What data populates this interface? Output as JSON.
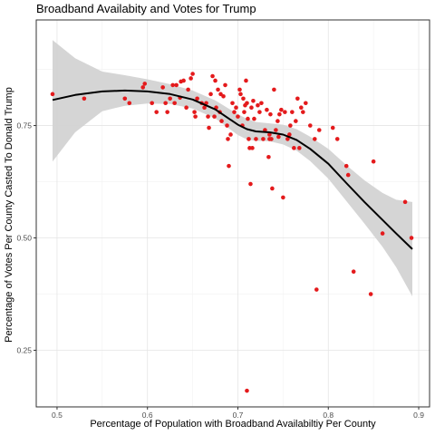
{
  "chart_data": {
    "type": "scatter",
    "title": "Broadband Availabity and Votes for Trump",
    "xlabel": "Percentage of Population with Broadband Availabiltiy Per County",
    "ylabel": "Percentage of Votes Per County Casted To Donald Trump",
    "xlim": [
      0.477,
      0.912
    ],
    "ylim": [
      0.124,
      0.985
    ],
    "x_ticks": [
      0.5,
      0.6,
      0.7,
      0.8,
      0.9
    ],
    "x_tick_labels": [
      "0.5",
      "0.6",
      "0.7",
      "0.8",
      "0.9"
    ],
    "y_ticks": [
      0.25,
      0.5,
      0.75
    ],
    "y_tick_labels": [
      "0.25",
      "0.50",
      "0.75"
    ],
    "grid": true,
    "point_color": "#e41a1c",
    "smooth_color": "#000000",
    "band_color": "#d3d3d3",
    "points": [
      [
        0.495,
        0.82
      ],
      [
        0.53,
        0.81
      ],
      [
        0.575,
        0.81
      ],
      [
        0.58,
        0.8
      ],
      [
        0.595,
        0.835
      ],
      [
        0.597,
        0.843
      ],
      [
        0.605,
        0.8
      ],
      [
        0.61,
        0.78
      ],
      [
        0.617,
        0.835
      ],
      [
        0.62,
        0.8
      ],
      [
        0.622,
        0.78
      ],
      [
        0.625,
        0.81
      ],
      [
        0.628,
        0.84
      ],
      [
        0.63,
        0.8
      ],
      [
        0.632,
        0.84
      ],
      [
        0.636,
        0.812
      ],
      [
        0.637,
        0.848
      ],
      [
        0.64,
        0.85
      ],
      [
        0.643,
        0.79
      ],
      [
        0.645,
        0.83
      ],
      [
        0.648,
        0.855
      ],
      [
        0.65,
        0.865
      ],
      [
        0.652,
        0.78
      ],
      [
        0.653,
        0.77
      ],
      [
        0.655,
        0.81
      ],
      [
        0.66,
        0.8
      ],
      [
        0.663,
        0.79
      ],
      [
        0.665,
        0.8
      ],
      [
        0.667,
        0.77
      ],
      [
        0.668,
        0.745
      ],
      [
        0.67,
        0.82
      ],
      [
        0.672,
        0.86
      ],
      [
        0.674,
        0.77
      ],
      [
        0.675,
        0.85
      ],
      [
        0.676,
        0.79
      ],
      [
        0.678,
        0.83
      ],
      [
        0.68,
        0.78
      ],
      [
        0.681,
        0.82
      ],
      [
        0.682,
        0.76
      ],
      [
        0.684,
        0.815
      ],
      [
        0.686,
        0.84
      ],
      [
        0.688,
        0.75
      ],
      [
        0.689,
        0.72
      ],
      [
        0.69,
        0.66
      ],
      [
        0.692,
        0.73
      ],
      [
        0.694,
        0.8
      ],
      [
        0.696,
        0.78
      ],
      [
        0.698,
        0.79
      ],
      [
        0.7,
        0.77
      ],
      [
        0.702,
        0.83
      ],
      [
        0.703,
        0.82
      ],
      [
        0.705,
        0.75
      ],
      [
        0.706,
        0.81
      ],
      [
        0.707,
        0.78
      ],
      [
        0.708,
        0.795
      ],
      [
        0.709,
        0.85
      ],
      [
        0.71,
        0.8
      ],
      [
        0.711,
        0.765
      ],
      [
        0.712,
        0.72
      ],
      [
        0.713,
        0.7
      ],
      [
        0.714,
        0.62
      ],
      [
        0.715,
        0.79
      ],
      [
        0.716,
        0.7
      ],
      [
        0.717,
        0.805
      ],
      [
        0.718,
        0.765
      ],
      [
        0.72,
        0.72
      ],
      [
        0.722,
        0.795
      ],
      [
        0.724,
        0.78
      ],
      [
        0.726,
        0.8
      ],
      [
        0.728,
        0.72
      ],
      [
        0.73,
        0.74
      ],
      [
        0.732,
        0.785
      ],
      [
        0.734,
        0.68
      ],
      [
        0.735,
        0.73
      ],
      [
        0.736,
        0.775
      ],
      [
        0.737,
        0.72
      ],
      [
        0.738,
        0.61
      ],
      [
        0.74,
        0.83
      ],
      [
        0.742,
        0.74
      ],
      [
        0.744,
        0.76
      ],
      [
        0.746,
        0.775
      ],
      [
        0.748,
        0.785
      ],
      [
        0.75,
        0.59
      ],
      [
        0.752,
        0.78
      ],
      [
        0.755,
        0.72
      ],
      [
        0.757,
        0.73
      ],
      [
        0.758,
        0.75
      ],
      [
        0.76,
        0.78
      ],
      [
        0.762,
        0.7
      ],
      [
        0.764,
        0.76
      ],
      [
        0.766,
        0.81
      ],
      [
        0.768,
        0.7
      ],
      [
        0.77,
        0.79
      ],
      [
        0.772,
        0.78
      ],
      [
        0.775,
        0.8
      ],
      [
        0.78,
        0.75
      ],
      [
        0.785,
        0.72
      ],
      [
        0.79,
        0.74
      ],
      [
        0.805,
        0.745
      ],
      [
        0.81,
        0.72
      ],
      [
        0.82,
        0.66
      ],
      [
        0.822,
        0.64
      ],
      [
        0.85,
        0.67
      ],
      [
        0.86,
        0.51
      ],
      [
        0.885,
        0.58
      ],
      [
        0.892,
        0.5
      ],
      [
        0.828,
        0.425
      ],
      [
        0.847,
        0.375
      ],
      [
        0.787,
        0.385
      ],
      [
        0.71,
        0.16
      ],
      [
        0.735,
        0.72
      ],
      [
        0.745,
        0.725
      ]
    ],
    "smooth": [
      [
        0.495,
        0.807
      ],
      [
        0.52,
        0.818
      ],
      [
        0.55,
        0.826
      ],
      [
        0.575,
        0.828
      ],
      [
        0.6,
        0.826
      ],
      [
        0.625,
        0.82
      ],
      [
        0.65,
        0.808
      ],
      [
        0.675,
        0.786
      ],
      [
        0.7,
        0.752
      ],
      [
        0.71,
        0.742
      ],
      [
        0.72,
        0.737
      ],
      [
        0.735,
        0.735
      ],
      [
        0.75,
        0.73
      ],
      [
        0.765,
        0.718
      ],
      [
        0.78,
        0.698
      ],
      [
        0.8,
        0.665
      ],
      [
        0.82,
        0.622
      ],
      [
        0.84,
        0.58
      ],
      [
        0.86,
        0.54
      ],
      [
        0.875,
        0.51
      ],
      [
        0.893,
        0.475
      ]
    ],
    "band_upper": [
      [
        0.495,
        0.94
      ],
      [
        0.52,
        0.9
      ],
      [
        0.55,
        0.87
      ],
      [
        0.575,
        0.862
      ],
      [
        0.6,
        0.853
      ],
      [
        0.625,
        0.842
      ],
      [
        0.65,
        0.828
      ],
      [
        0.675,
        0.806
      ],
      [
        0.7,
        0.775
      ],
      [
        0.71,
        0.765
      ],
      [
        0.72,
        0.758
      ],
      [
        0.735,
        0.755
      ],
      [
        0.75,
        0.752
      ],
      [
        0.765,
        0.742
      ],
      [
        0.78,
        0.725
      ],
      [
        0.8,
        0.698
      ],
      [
        0.82,
        0.662
      ],
      [
        0.84,
        0.628
      ],
      [
        0.86,
        0.6
      ],
      [
        0.875,
        0.585
      ],
      [
        0.893,
        0.58
      ]
    ],
    "band_lower": [
      [
        0.495,
        0.67
      ],
      [
        0.52,
        0.735
      ],
      [
        0.55,
        0.782
      ],
      [
        0.575,
        0.794
      ],
      [
        0.6,
        0.799
      ],
      [
        0.625,
        0.798
      ],
      [
        0.65,
        0.788
      ],
      [
        0.675,
        0.766
      ],
      [
        0.7,
        0.729
      ],
      [
        0.71,
        0.719
      ],
      [
        0.72,
        0.716
      ],
      [
        0.735,
        0.715
      ],
      [
        0.75,
        0.708
      ],
      [
        0.765,
        0.694
      ],
      [
        0.78,
        0.671
      ],
      [
        0.8,
        0.632
      ],
      [
        0.82,
        0.582
      ],
      [
        0.84,
        0.532
      ],
      [
        0.86,
        0.48
      ],
      [
        0.875,
        0.435
      ],
      [
        0.893,
        0.37
      ]
    ]
  }
}
